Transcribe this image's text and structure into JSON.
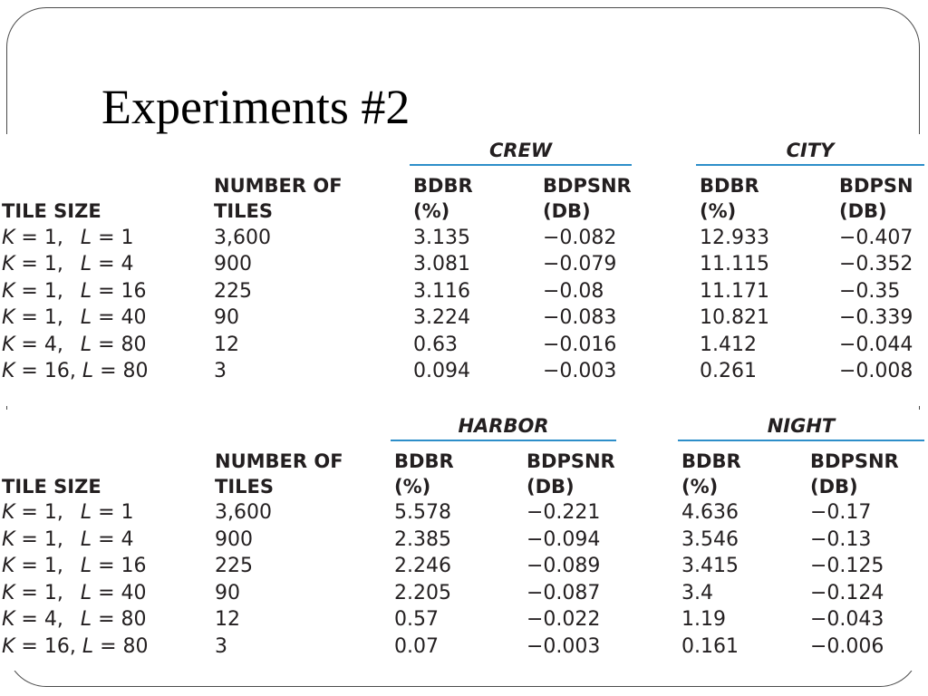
{
  "slide": {
    "title": "Experiments #2"
  },
  "tables": [
    {
      "groups": [
        "CREW",
        "CITY"
      ],
      "headers": {
        "tile_size": "TILE SIZE",
        "num_tiles_1": "NUMBER OF",
        "num_tiles_2": "TILES",
        "col_a_1": "BDBR",
        "col_a_2": "(%)",
        "col_b_1": "BDPSNR",
        "col_b_2": "(DB)",
        "col_c_1": "BDBR",
        "col_c_2": "(%)",
        "col_d_1": "BDPSN",
        "col_d_2": "(DB)"
      },
      "rows": [
        {
          "k": "K",
          "k_eq": " = 1,",
          "l": "L",
          "l_eq": " = 1",
          "tiles": "3,600",
          "a": "3.135",
          "b": "−0.082",
          "c": "12.933",
          "d": "−0.407"
        },
        {
          "k": "K",
          "k_eq": " = 1,",
          "l": "L",
          "l_eq": " = 4",
          "tiles": "900",
          "a": "3.081",
          "b": "−0.079",
          "c": "11.115",
          "d": "−0.352"
        },
        {
          "k": "K",
          "k_eq": " = 1,",
          "l": "L",
          "l_eq": " = 16",
          "tiles": "225",
          "a": "3.116",
          "b": "−0.08",
          "c": "11.171",
          "d": "−0.35"
        },
        {
          "k": "K",
          "k_eq": " = 1,",
          "l": "L",
          "l_eq": " = 40",
          "tiles": "90",
          "a": "3.224",
          "b": "−0.083",
          "c": "10.821",
          "d": "−0.339"
        },
        {
          "k": "K",
          "k_eq": " = 4,",
          "l": "L",
          "l_eq": " = 80",
          "tiles": "12",
          "a": "0.63",
          "b": "−0.016",
          "c": "1.412",
          "d": "−0.044"
        },
        {
          "k": "K",
          "k_eq": " = 16,",
          "l": "L",
          "l_eq": " = 80",
          "tiles": "3",
          "a": "0.094",
          "b": "−0.003",
          "c": "0.261",
          "d": "−0.008"
        }
      ]
    },
    {
      "groups": [
        "HARBOR",
        "NIGHT"
      ],
      "headers": {
        "tile_size": "TILE SIZE",
        "num_tiles_1": "NUMBER OF",
        "num_tiles_2": "TILES",
        "col_a_1": "BDBR",
        "col_a_2": "(%)",
        "col_b_1": "BDPSNR",
        "col_b_2": "(DB)",
        "col_c_1": "BDBR",
        "col_c_2": "(%)",
        "col_d_1": "BDPSNR",
        "col_d_2": "(DB)"
      },
      "rows": [
        {
          "k": "K",
          "k_eq": " = 1,",
          "l": "L",
          "l_eq": " = 1",
          "tiles": "3,600",
          "a": "5.578",
          "b": "−0.221",
          "c": "4.636",
          "d": "−0.17"
        },
        {
          "k": "K",
          "k_eq": " = 1,",
          "l": "L",
          "l_eq": " = 4",
          "tiles": "900",
          "a": "2.385",
          "b": "−0.094",
          "c": "3.546",
          "d": "−0.13"
        },
        {
          "k": "K",
          "k_eq": " = 1,",
          "l": "L",
          "l_eq": " = 16",
          "tiles": "225",
          "a": "2.246",
          "b": "−0.089",
          "c": "3.415",
          "d": "−0.125"
        },
        {
          "k": "K",
          "k_eq": " = 1,",
          "l": "L",
          "l_eq": " = 40",
          "tiles": "90",
          "a": "2.205",
          "b": "−0.087",
          "c": "3.4",
          "d": "−0.124"
        },
        {
          "k": "K",
          "k_eq": " = 4,",
          "l": "L",
          "l_eq": " = 80",
          "tiles": "12",
          "a": "0.57",
          "b": "−0.022",
          "c": "1.19",
          "d": "−0.043"
        },
        {
          "k": "K",
          "k_eq": " = 16,",
          "l": "L",
          "l_eq": " = 80",
          "tiles": "3",
          "a": "0.07",
          "b": "−0.003",
          "c": "0.161",
          "d": "−0.006"
        }
      ]
    }
  ]
}
